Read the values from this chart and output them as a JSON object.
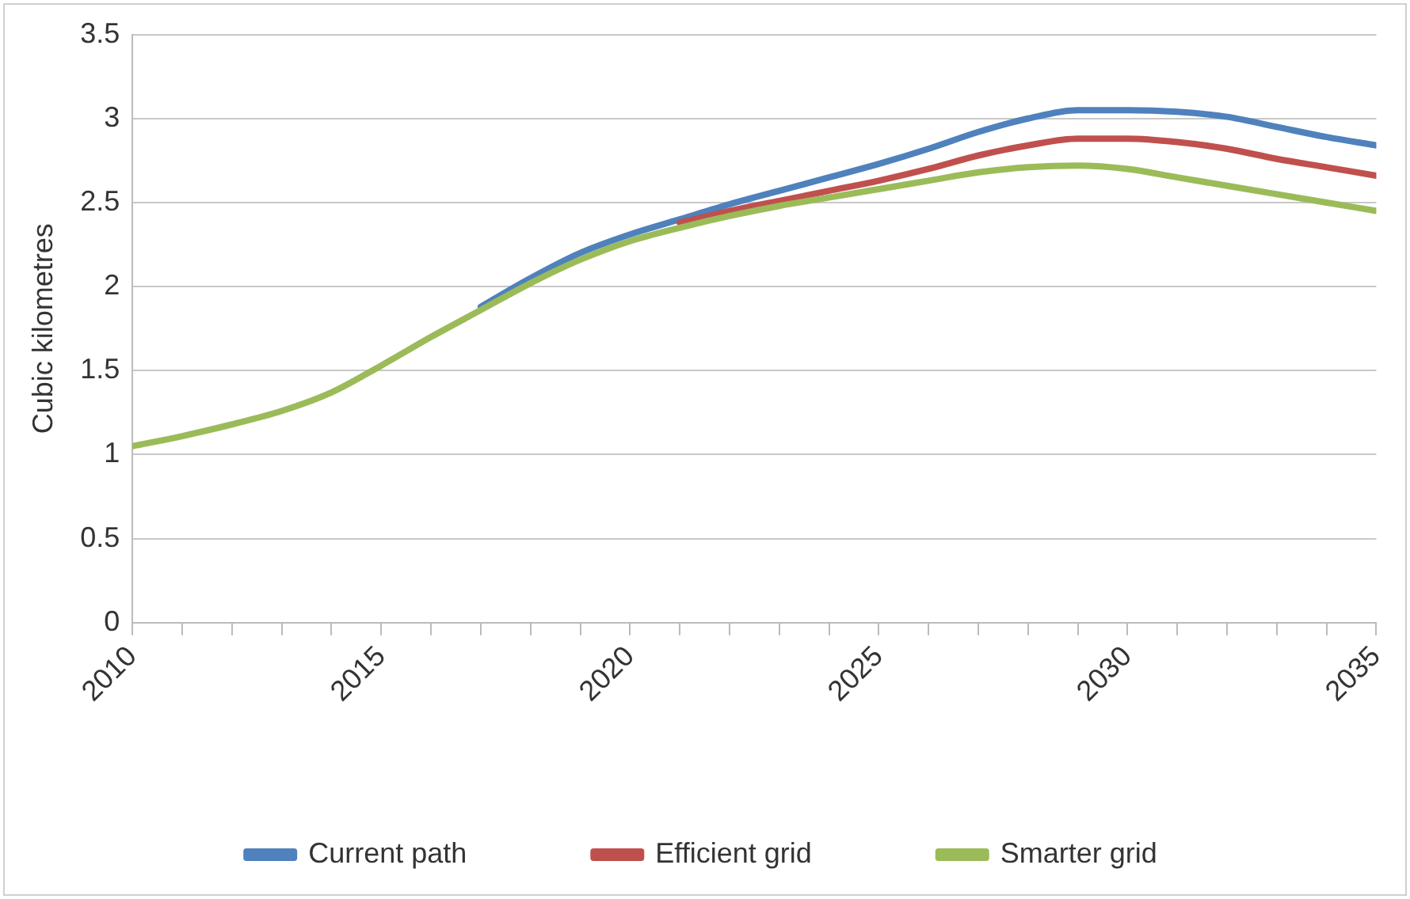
{
  "chart_data": {
    "type": "line",
    "ylabel": "Cubic kilometres",
    "x": [
      2010,
      2011,
      2012,
      2013,
      2014,
      2015,
      2016,
      2017,
      2018,
      2019,
      2020,
      2021,
      2022,
      2023,
      2024,
      2025,
      2026,
      2027,
      2028,
      2029,
      2030,
      2031,
      2032,
      2033,
      2034,
      2035
    ],
    "series": [
      {
        "name": "Current path",
        "color": "#4f81bd",
        "values": [
          null,
          null,
          null,
          null,
          null,
          null,
          null,
          1.88,
          2.05,
          2.2,
          2.31,
          2.4,
          2.49,
          2.57,
          2.65,
          2.73,
          2.82,
          2.92,
          3.0,
          3.05,
          3.05,
          3.04,
          3.01,
          2.95,
          2.89,
          2.84
        ]
      },
      {
        "name": "Efficient grid",
        "color": "#c0504d",
        "values": [
          null,
          null,
          null,
          null,
          null,
          null,
          null,
          null,
          null,
          null,
          null,
          2.38,
          2.45,
          2.51,
          2.57,
          2.63,
          2.7,
          2.78,
          2.84,
          2.88,
          2.88,
          2.86,
          2.82,
          2.76,
          2.71,
          2.66
        ]
      },
      {
        "name": "Smarter grid",
        "color": "#9bbb59",
        "values": [
          1.05,
          1.11,
          1.18,
          1.26,
          1.37,
          1.53,
          1.7,
          1.86,
          2.02,
          2.16,
          2.27,
          2.35,
          2.42,
          2.48,
          2.53,
          2.58,
          2.63,
          2.68,
          2.71,
          2.72,
          2.7,
          2.65,
          2.6,
          2.55,
          2.5,
          2.45
        ]
      }
    ],
    "xlim": [
      2010,
      2035
    ],
    "xticks": [
      2010,
      {
        "value": 2011,
        "label": null
      },
      {
        "value": 2012,
        "label": null
      },
      {
        "value": 2013,
        "label": null
      },
      {
        "value": 2014,
        "label": null
      },
      2015,
      {
        "value": 2016,
        "label": null
      },
      {
        "value": 2017,
        "label": null
      },
      {
        "value": 2018,
        "label": null
      },
      {
        "value": 2019,
        "label": null
      },
      2020,
      {
        "value": 2021,
        "label": null
      },
      {
        "value": 2022,
        "label": null
      },
      {
        "value": 2023,
        "label": null
      },
      {
        "value": 2024,
        "label": null
      },
      2025,
      {
        "value": 2026,
        "label": null
      },
      {
        "value": 2027,
        "label": null
      },
      {
        "value": 2028,
        "label": null
      },
      {
        "value": 2029,
        "label": null
      },
      2030,
      {
        "value": 2031,
        "label": null
      },
      {
        "value": 2032,
        "label": null
      },
      {
        "value": 2033,
        "label": null
      },
      {
        "value": 2034,
        "label": null
      },
      2035
    ],
    "ylim": [
      0,
      3.5
    ],
    "yticks": [
      0,
      0.5,
      1,
      1.5,
      2,
      2.5,
      3,
      3.5
    ],
    "grid": "y",
    "legend": "bottom",
    "marker": "none",
    "line_style": "solid"
  }
}
